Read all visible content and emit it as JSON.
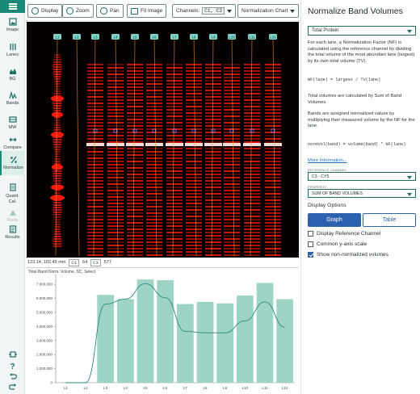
{
  "rail": {
    "items": [
      {
        "icon": "image-icon",
        "label": "Image"
      },
      {
        "icon": "lanes-icon",
        "label": "Lanes"
      },
      {
        "icon": "bg-icon",
        "label": "BG"
      },
      {
        "icon": "bands-icon",
        "label": "Bands"
      },
      {
        "icon": "mw-icon",
        "label": "MW"
      },
      {
        "icon": "compare-icon",
        "label": "Compare"
      },
      {
        "icon": "normalize-icon",
        "label": "Normalize"
      },
      {
        "icon": "quant-icon",
        "label": "Quant.\nCal."
      },
      {
        "icon": "purity-icon",
        "label": "Purity"
      },
      {
        "icon": "results-icon",
        "label": "Results"
      }
    ]
  },
  "toolbar": {
    "display_label": "Display",
    "zoom_label": "Zoom",
    "pan_label": "Pan",
    "fit_label": "Fit Image",
    "channels_label": "Channels:",
    "channels_value": "C1, C3",
    "chart_select": "Normalization Chart"
  },
  "gel": {
    "lane_tags": [
      "L1",
      "L2",
      "L3",
      "L4",
      "L5",
      "L6",
      "L7",
      "L8",
      "L9",
      "L10",
      "L11",
      "L12"
    ],
    "colors": {
      "band": "#ff1a0a",
      "lane_line": "#ff9a2a",
      "tag": "#7fd6c8"
    }
  },
  "status": {
    "coords": "123.14, 102.45 mm",
    "c1_label": "C1",
    "c1_value": "64",
    "c3_label": "C3",
    "c3_value": "577"
  },
  "chart_data": {
    "type": "bar",
    "title": "Total Band Norm. Volume, SC, Select",
    "categories": [
      "L1",
      "L2",
      "L3",
      "L4",
      "L5",
      "L6",
      "L7",
      "L8",
      "L9",
      "L10",
      "L11",
      "L12"
    ],
    "series": [
      {
        "name": "Total Band Norm. Volume",
        "values": [
          0,
          0,
          6250000,
          5950000,
          7350000,
          7300000,
          5600000,
          5750000,
          5650000,
          6200000,
          7100000,
          5950000
        ]
      },
      {
        "name": "Non-normalized volume",
        "values": [
          0,
          0,
          5600000,
          5950000,
          7050000,
          6050000,
          3650000,
          3550000,
          3550000,
          4400000,
          5750000,
          3950000
        ]
      }
    ],
    "yticks": [
      "0",
      "1,000,000",
      "2,000,000",
      "3,000,000",
      "4,000,000",
      "5,000,000",
      "6,000,000",
      "7,000,000"
    ],
    "ylim": [
      0,
      7700000
    ],
    "colors": {
      "bar": "#9ed4c6",
      "line": "#2a8a76"
    }
  },
  "panel": {
    "title": "Normalize Band Volumes",
    "method": "Total Protein",
    "desc1": "For each lane, a Normalization Factor (NF) is calculated using the reference channel by dividing the total volume of the most abundant lane (largest) by its own total volume (TV).",
    "formula1": "NF(lane) = largest / TV(lane)",
    "desc2": "Total volumes are calculated by Sum of Band Volumes.",
    "desc3": "Bands are assigned normalized values by multiplying their measured volume by the NF for the lane.",
    "formula2": "normVol(band) = volume(band) * NF(lane)",
    "more_link": "More Information...",
    "ref_channel_label": "REFERENCE CHANNEL",
    "ref_channel": "C3 - CY5",
    "property_label": "PROPERTY",
    "property": "SUM OF BAND VOLUMES",
    "display_options": "Display Options",
    "graph_btn": "Graph",
    "table_btn": "Table",
    "opt1": "Display Reference Channel",
    "opt2": "Common y-axis scale",
    "opt3": "Show non-normalized volumes"
  }
}
